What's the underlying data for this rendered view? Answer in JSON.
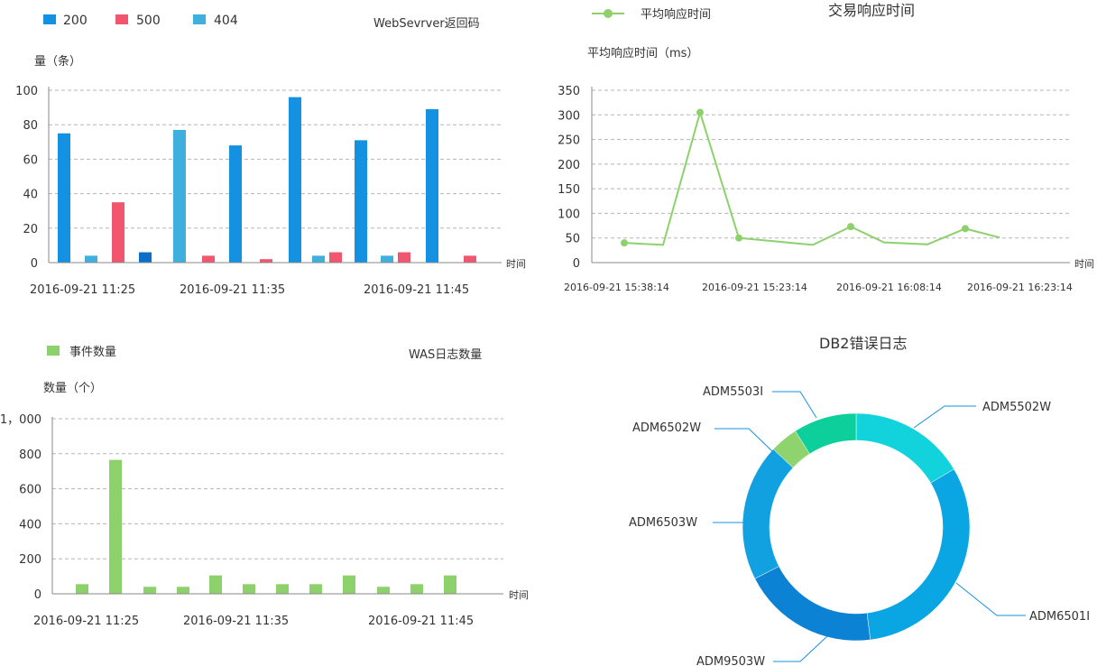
{
  "chart_data": [
    {
      "type": "bar",
      "title": "WebSevrver返回码",
      "ylabel": "量（条）",
      "xlabel": "时间",
      "ylim": [
        0,
        100
      ],
      "yticks": [
        0,
        20,
        40,
        60,
        80,
        100
      ],
      "legend": [
        {
          "name": "200",
          "color": "#1591e2"
        },
        {
          "name": "500",
          "color": "#f0566e"
        },
        {
          "name": "404",
          "color": "#3fafdd"
        }
      ],
      "xtick_labels": [
        "2016-09-21  11:25",
        "2016-09-21  11:35",
        "2016-09-21  11:45"
      ],
      "bars": [
        {
          "value": 75,
          "color": "#1591e2"
        },
        {
          "value": 4,
          "color": "#3fafdd"
        },
        {
          "value": 35,
          "color": "#f0566e"
        },
        {
          "value": 6,
          "color": "#0b6fc7"
        },
        {
          "value": 77,
          "color": "#3fafdd"
        },
        {
          "value": 4,
          "color": "#f0566e"
        },
        {
          "value": 68,
          "color": "#1591e2"
        },
        {
          "value": 2,
          "color": "#f0566e"
        },
        {
          "value": 96,
          "color": "#1591e2"
        },
        {
          "value": 4,
          "color": "#3fafdd"
        },
        {
          "value": 6,
          "color": "#f0566e"
        },
        {
          "value": 71,
          "color": "#1591e2"
        },
        {
          "value": 4,
          "color": "#3fafdd"
        },
        {
          "value": 6,
          "color": "#f0566e"
        },
        {
          "value": 89,
          "color": "#1591e2"
        },
        {
          "value": 4,
          "color": "#f0566e"
        }
      ]
    },
    {
      "type": "line",
      "title": "交易响应时间",
      "legend": [
        {
          "name": "平均响应时间",
          "color": "#8dd16c"
        }
      ],
      "ylabel": "平均响应时间（ms）",
      "xlabel": "时间",
      "ylim": [
        0,
        350
      ],
      "yticks": [
        0,
        50,
        100,
        150,
        200,
        250,
        300,
        350
      ],
      "xtick_labels": [
        "2016-09-21  15:38:14",
        "2016-09-21  15:23:14",
        "2016-09-21  16:08:14",
        "2016-09-21  16:23:14"
      ],
      "values": [
        40,
        36,
        305,
        50,
        43,
        36,
        73,
        41,
        37,
        69,
        51
      ],
      "markers": [
        true,
        false,
        true,
        true,
        false,
        false,
        true,
        false,
        false,
        true,
        false
      ],
      "color": "#8dd16c"
    },
    {
      "type": "bar",
      "title": "WAS日志数量",
      "legend": [
        {
          "name": "事件数量",
          "color": "#8dd16c"
        }
      ],
      "ylabel": "数量（个）",
      "xlabel": "时间",
      "ylim": [
        0,
        1000
      ],
      "yticks": [
        0,
        200,
        400,
        600,
        800,
        1000
      ],
      "ytick_labels": [
        "0",
        "200",
        "400",
        "600",
        "800",
        "1，000"
      ],
      "xtick_labels": [
        "2016-09-21  11:25",
        "2016-09-21  11:35",
        "2016-09-21  11:45"
      ],
      "values": [
        55,
        765,
        40,
        40,
        105,
        55,
        55,
        55,
        105,
        40,
        55,
        105
      ],
      "color": "#8dd16c"
    },
    {
      "type": "pie",
      "title": "DB2错误日志",
      "slices": [
        {
          "label": "ADM5502W",
          "value": 16.5,
          "color": "#12d3dc"
        },
        {
          "label": "ADM6501I",
          "value": 31.5,
          "color": "#0aa6e3"
        },
        {
          "label": "ADM9503W",
          "value": 19.5,
          "color": "#0b82d4"
        },
        {
          "label": "ADM6503W",
          "value": 19.5,
          "color": "#12a1e0"
        },
        {
          "label": "ADM6502W",
          "value": 4,
          "color": "#8ed36e"
        },
        {
          "label": "ADM5503I",
          "value": 9,
          "color": "#0dcf9c"
        }
      ]
    }
  ]
}
